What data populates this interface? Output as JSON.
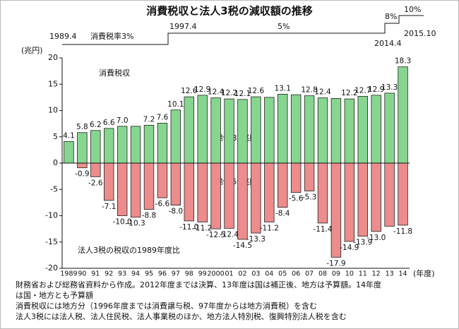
{
  "chart_data": {
    "type": "bar",
    "title": "消費税収と法人3税の減収額の推移",
    "timeline": [
      "1989.4",
      "消費税率3%",
      "1997.4",
      "5%",
      "8%",
      "10%",
      "2014.4",
      "2015.10"
    ],
    "y_unit": "(兆円)",
    "x_unit": "(年度)",
    "annotations": [
      "累計282兆円",
      "累計255兆円"
    ],
    "categories": [
      "1989",
      "90",
      "91",
      "92",
      "93",
      "94",
      "95",
      "96",
      "97",
      "98",
      "99",
      "2000",
      "01",
      "02",
      "03",
      "04",
      "05",
      "06",
      "07",
      "08",
      "09",
      "10",
      "11",
      "12",
      "13",
      "14"
    ],
    "series": [
      {
        "name": "消費税収",
        "color": "#86d68f",
        "values": [
          4.1,
          5.8,
          6.2,
          6.6,
          7.0,
          7.0,
          7.2,
          7.6,
          10.1,
          12.6,
          12.9,
          12.4,
          12.2,
          12.1,
          12.6,
          12.5,
          13.1,
          13.0,
          12.8,
          12.4,
          12.3,
          12.2,
          12.7,
          12.9,
          13.3,
          18.3
        ],
        "value_labels": [
          "4.1",
          "5.8",
          "6.2",
          "6.6",
          "7.0",
          null,
          "7.2",
          "7.6",
          "10.1",
          "12.6",
          "12.9",
          "12.4",
          "12.2",
          "12.1",
          "12.6",
          null,
          "13.1",
          null,
          "12.8",
          "12.4",
          null,
          "12.2",
          "12.7",
          "12.9",
          "13.3",
          "18.3"
        ]
      },
      {
        "name": "法人3税の税収の1989年度比",
        "color": "#ec8c8c",
        "values": [
          0,
          -0.9,
          -2.6,
          -7.1,
          -10.0,
          -10.3,
          -8.8,
          -6.6,
          -8.0,
          -11.0,
          -11.2,
          -12.5,
          -12.4,
          -14.5,
          -13.3,
          -11.2,
          -8.4,
          -5.6,
          -5.3,
          -11.4,
          -17.9,
          -14.9,
          -13.9,
          -13.0,
          -12.0,
          -11.8
        ],
        "value_labels": [
          null,
          "-0.9",
          "-2.6",
          "-7.1",
          "-10.0",
          "-10.3",
          "-8.8",
          "-6.6",
          "-8.0",
          "-11.0",
          "-11.2",
          "-12.5",
          "-12.4",
          "-14.5",
          "-13.3",
          "-11.2",
          "-8.4",
          "-5.6",
          "-5.3",
          "-11.4",
          "-17.9",
          "-14.9",
          "-13.9",
          "-13.0",
          null,
          "-11.8"
        ]
      }
    ],
    "ylim": [
      -20,
      20
    ],
    "yticks": [
      20,
      15,
      10,
      5,
      0,
      -5,
      -10,
      -15,
      -20
    ],
    "grid": false,
    "notes": [
      "財務省および総務省資料から作成。2012年度までは決算、13年度は国は補正後、地方は予算額。14年度",
      "は国・地方とも予算額",
      "消費税収には地方分（1996年度までは消費譲与税、97年度からは地方消費税）を含む",
      "法人3税には法人税、法人住民税、法人事業税のほか、地方法人特別税、復興特別法人税を含む"
    ]
  }
}
